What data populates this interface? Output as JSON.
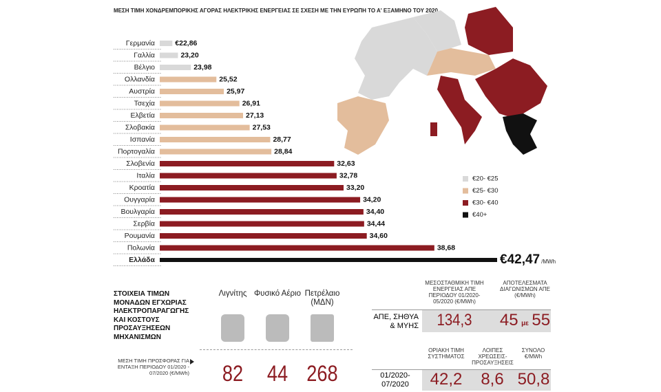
{
  "chart_data": {
    "type": "bar",
    "orientation": "horizontal",
    "subtitle": "ΜΕΣΗ ΤΙΜΗ ΧΟΝΔΡΕΜΠΟΡΙΚΗΣ ΑΓΟΡΑΣ ΗΛΕΚΤΡΙΚΗΣ ΕΝΕΡΓΕΙΑΣ ΣΕ ΣΧΕΣΗ ΜΕ ΤΗΝ ΕΥΡΩΠΗ ΤΟ Α' ΕΞΑΜΗΝΟ ΤΟΥ 2020",
    "categories": [
      "Γερμανία",
      "Γαλλία",
      "Βέλγιο",
      "Ολλανδία",
      "Αυστρία",
      "Τσεχία",
      "Ελβετία",
      "Σλοβακία",
      "Ισπανία",
      "Πορτογαλία",
      "Σλοβενία",
      "Ιταλία",
      "Κροατία",
      "Ουγγαρία",
      "Βουλγαρία",
      "Σερβία",
      "Ρουμανία",
      "Πολωνία",
      "Ελλάδα"
    ],
    "values": [
      22.86,
      23.2,
      23.98,
      25.52,
      25.97,
      26.91,
      27.13,
      27.53,
      28.77,
      28.84,
      32.63,
      32.78,
      33.2,
      34.2,
      34.4,
      34.44,
      34.6,
      38.68,
      42.47
    ],
    "value_labels": [
      "€22,86",
      "23,20",
      "23,98",
      "25,52",
      "25,97",
      "26,91",
      "27,13",
      "27,53",
      "28,77",
      "28,84",
      "32,63",
      "32,78",
      "33,20",
      "34,20",
      "34,40",
      "34,44",
      "34,60",
      "38,68",
      "€42,47"
    ],
    "colors": [
      "#d9d9d9",
      "#d9d9d9",
      "#d9d9d9",
      "#e3bd9c",
      "#e3bd9c",
      "#e3bd9c",
      "#e3bd9c",
      "#e3bd9c",
      "#e3bd9c",
      "#e3bd9c",
      "#8c1c22",
      "#8c1c22",
      "#8c1c22",
      "#8c1c22",
      "#8c1c22",
      "#8c1c22",
      "#8c1c22",
      "#8c1c22",
      "#111111"
    ],
    "unit_label": "/MWh",
    "xlim": [
      22.1,
      42.47
    ]
  },
  "map_legend": [
    {
      "label": "€20- €25",
      "color": "#d9d9d9"
    },
    {
      "label": "€25- €30",
      "color": "#e3bd9c"
    },
    {
      "label": "€30- €40",
      "color": "#8c1c22"
    },
    {
      "label": "€40+",
      "color": "#111111"
    }
  ],
  "generation_costs": {
    "title": "ΣΤΟΙΧΕΙΑ ΤΙΜΩΝ ΜΟΝΑΔΩΝ ΕΓΧΩΡΙΑΣ ΗΛΕΚΤΡΟΠΑΡΑΓΩΓΗΣ ΚΑΙ ΚΟΣΤΟΥΣ ΠΡΟΣΑΥΞΗΣΕΩΝ ΜΗΧΑΝΙΣΜΩΝ",
    "note": "ΜΕΣΗ ΤΙΜΗ ΠΡΟΣΦΟΡΑΣ ΓΙΑ ΕΝΤΑΞΗ ΠΕΡΙΟΔΟΥ 01/2020 - 07/2020 (€/MWh)",
    "fuels": [
      {
        "name": "Λιγνίτης",
        "value": 82
      },
      {
        "name": "Φυσικό Αέριο",
        "value": 44
      },
      {
        "name": "Πετρέλαιο (ΜΔΝ)",
        "value": 268
      }
    ]
  },
  "res_table": {
    "headers": [
      "ΜΕΣΟΣΤΑΘΜΙΚΗ ΤΙΜΗ ΕΝΕΡΓΕΙΑΣ ΑΠΕ ΠΕΡΙΟΔΟΥ 01/2020-05/2020 (€/MWh)",
      "ΑΠΟΤΕΛΕΣΜΑΤΑ ΔΙΑΓΩΝΙΣΜΩΝ ΑΠΕ (€/MWh)"
    ],
    "row_label": "ΑΠΕ, ΣΗΘΥΑ & ΜΥΗΣ",
    "average": "134,3",
    "auction_low": "45",
    "auction_joiner": "με",
    "auction_high": "55"
  },
  "price_table": {
    "headers": [
      "ΟΡΙΑΚΗ ΤΙΜΗ ΣΥΣΤΗΜΑΤΟΣ",
      "ΛΟΙΠΕΣ ΧΡΕΩΣΕΙΣ-ΠΡΟΣΑΥΞΗΣΕΙΣ",
      "ΣΥΝΟΛΟ €/MWh"
    ],
    "row_label": "01/2020-07/2020",
    "values": [
      "42,2",
      "8,6",
      "50,8"
    ]
  }
}
